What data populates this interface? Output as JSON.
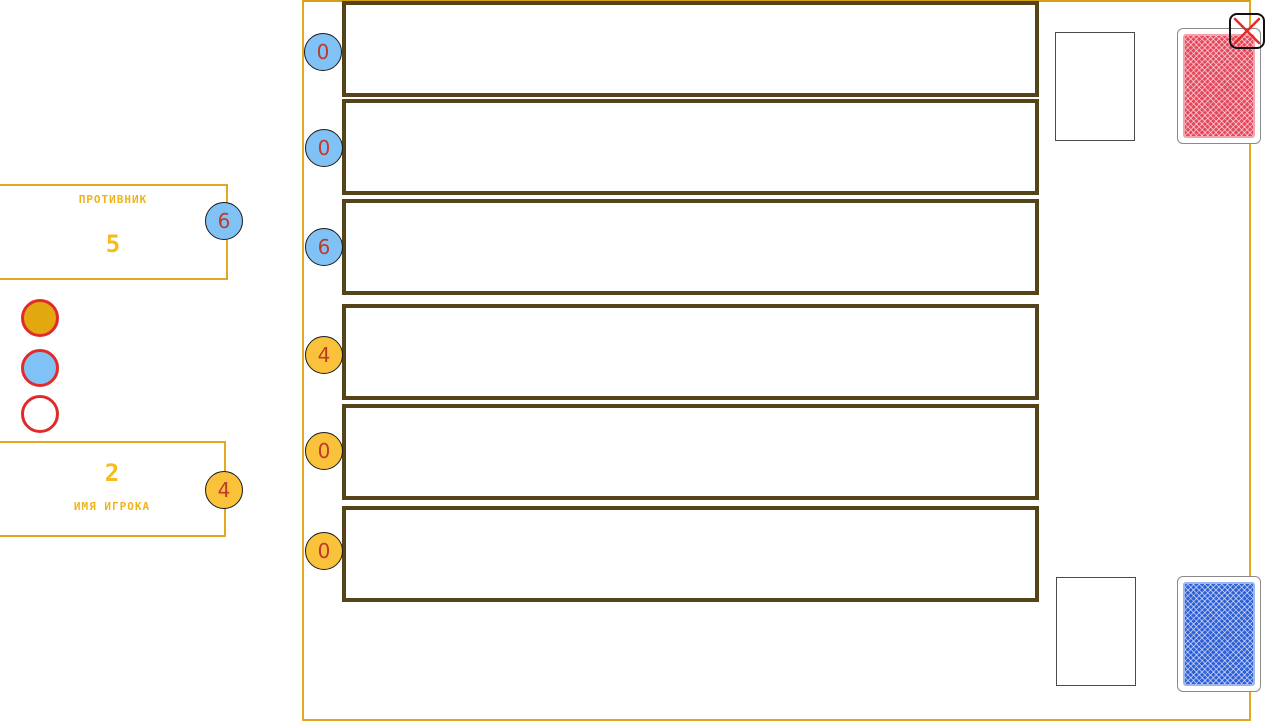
{
  "opponent": {
    "label": "ПРОТИВНИК",
    "score": "5",
    "badge": "6"
  },
  "player": {
    "label": "ИМЯ ИГРОКА",
    "score": "2",
    "badge": "4"
  },
  "legend": [
    {
      "fill": "#e2a810",
      "border": "#e12b2b"
    },
    {
      "fill": "#80c2f6",
      "border": "#e12b2b"
    },
    {
      "fill": "#ffffff",
      "border": "#e12b2b"
    }
  ],
  "rows": [
    {
      "badge": "0",
      "color": "blue"
    },
    {
      "badge": "0",
      "color": "blue"
    },
    {
      "badge": "6",
      "color": "blue"
    },
    {
      "badge": "4",
      "color": "yellow"
    },
    {
      "badge": "0",
      "color": "yellow"
    },
    {
      "badge": "0",
      "color": "yellow"
    }
  ],
  "decks": {
    "opponent_back": "red",
    "player_back": "blue"
  },
  "icons": {
    "close": "close-icon"
  },
  "colors": {
    "accent_border": "#e2a820",
    "row_border": "#55431a",
    "badge_text": "#c0392b",
    "blue": "#80c2f6",
    "yellow": "#f9c23a"
  }
}
